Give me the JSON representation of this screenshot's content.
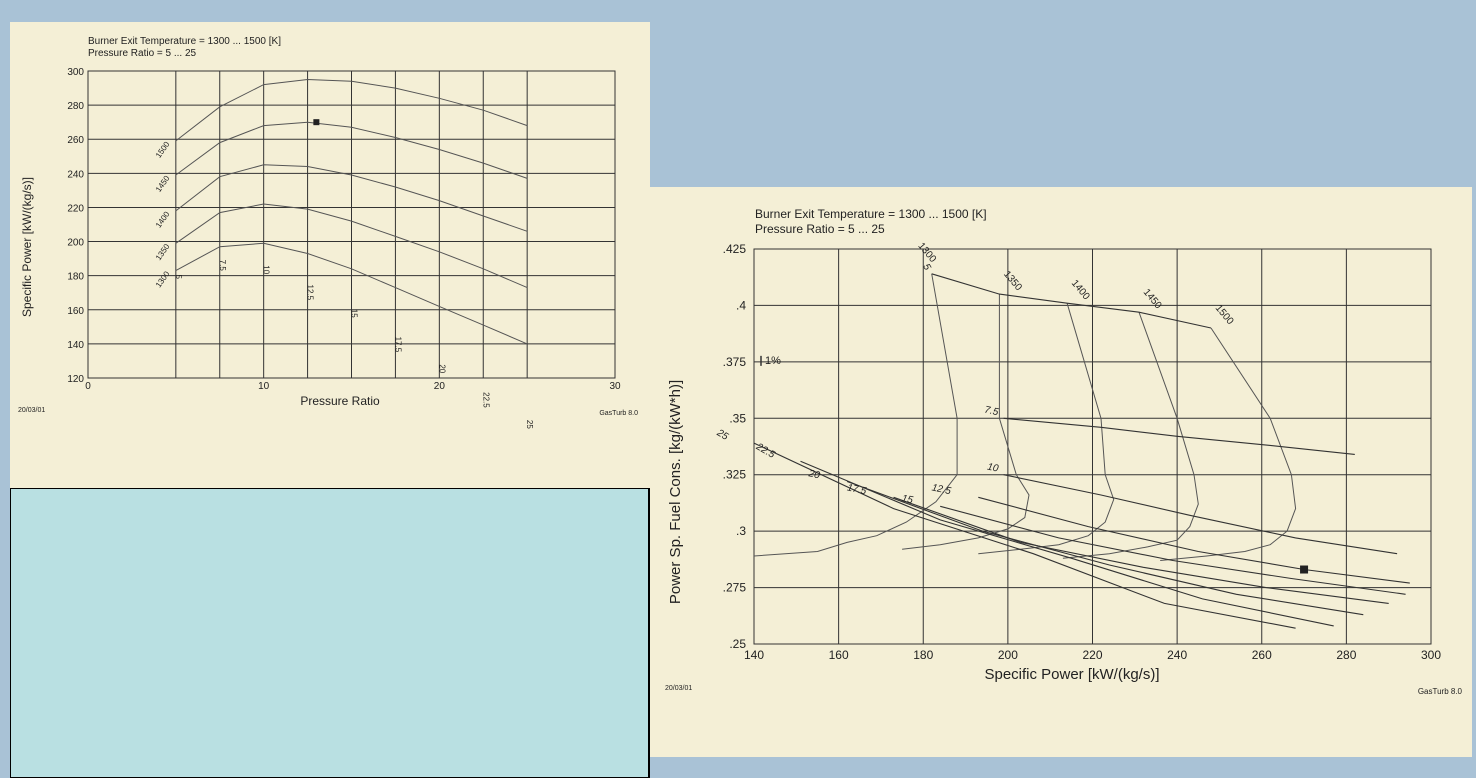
{
  "colors": {
    "page_bg": "#a9c2d6",
    "paper": "#f4efd6",
    "blank_panel": "#b9e0e2",
    "grid": "#333333",
    "curve": "#555555"
  },
  "chart_data": [
    {
      "type": "line",
      "header_lines": [
        "Burner Exit Temperature = 1300 ... 1500 [K]",
        "Pressure Ratio = 5 ... 25"
      ],
      "xlabel": "Pressure Ratio",
      "ylabel": "Specific Power [kW/(kg/s)]",
      "xlim": [
        0,
        30
      ],
      "ylim": [
        120,
        300
      ],
      "xticks": [
        0,
        10,
        20,
        30
      ],
      "yticks": [
        120,
        140,
        160,
        180,
        200,
        220,
        240,
        260,
        280,
        300
      ],
      "grid": true,
      "date": "20/03/01",
      "software": "GasTurb 8.0",
      "x": [
        5,
        7.5,
        10,
        12.5,
        15,
        17.5,
        20,
        22.5,
        25
      ],
      "x_markers": [
        "5",
        "7.5",
        "10",
        "12.5",
        "15",
        "17.5",
        "20",
        "22.5",
        "25"
      ],
      "series": [
        {
          "name": "1300",
          "values": [
            183,
            197,
            199,
            193,
            184,
            173,
            162,
            151,
            140
          ]
        },
        {
          "name": "1350",
          "values": [
            199,
            217,
            222,
            219,
            212,
            203,
            194,
            184,
            173
          ]
        },
        {
          "name": "1400",
          "values": [
            218,
            238,
            245,
            244,
            239,
            232,
            224,
            215,
            206
          ]
        },
        {
          "name": "1450",
          "values": [
            239,
            258,
            268,
            270,
            267,
            261,
            254,
            246,
            237
          ]
        },
        {
          "name": "1500",
          "values": [
            259,
            279,
            292,
            295,
            294,
            290,
            284,
            277,
            268
          ]
        }
      ],
      "highlight_point": {
        "x": 13,
        "y": 270
      }
    },
    {
      "type": "line",
      "header_lines": [
        "Burner Exit Temperature = 1300 ... 1500 [K]",
        "Pressure Ratio = 5 ... 25"
      ],
      "xlabel": "Specific Power [kW/(kg/s)]",
      "ylabel": "Power Sp. Fuel Cons. [kg/(kW*h)]",
      "xlim": [
        140,
        300
      ],
      "ylim": [
        0.25,
        0.425
      ],
      "xticks": [
        140,
        160,
        180,
        200,
        220,
        240,
        260,
        280,
        300
      ],
      "yticks": [
        ".25",
        ".275",
        ".3",
        ".325",
        ".35",
        ".375",
        ".4",
        ".425"
      ],
      "yvals": [
        0.25,
        0.275,
        0.3,
        0.325,
        0.35,
        0.375,
        0.4,
        0.425
      ],
      "scale_note": "1%",
      "grid": true,
      "date": "20/03/01",
      "software": "GasTurb 8.0",
      "temperature_series": [
        {
          "name": "1300",
          "points": [
            [
              182,
              0.414
            ],
            [
              188,
              0.35
            ],
            [
              188,
              0.325
            ],
            [
              183,
              0.313
            ],
            [
              176,
              0.304
            ],
            [
              169,
              0.298
            ],
            [
              162,
              0.295
            ],
            [
              155,
              0.291
            ],
            [
              140,
              0.289
            ]
          ]
        },
        {
          "name": "1350",
          "points": [
            [
              198,
              0.405
            ],
            [
              198,
              0.35
            ],
            [
              202,
              0.325
            ],
            [
              205,
              0.316
            ],
            [
              204,
              0.306
            ],
            [
              200,
              0.301
            ],
            [
              193,
              0.297
            ],
            [
              184,
              0.294
            ],
            [
              175,
              0.292
            ]
          ]
        },
        {
          "name": "1400",
          "points": [
            [
              214,
              0.401
            ],
            [
              222,
              0.35
            ],
            [
              223,
              0.325
            ],
            [
              225,
              0.314
            ],
            [
              223,
              0.304
            ],
            [
              219,
              0.298
            ],
            [
              212,
              0.294
            ],
            [
              203,
              0.292
            ],
            [
              193,
              0.29
            ]
          ]
        },
        {
          "name": "1450",
          "points": [
            [
              231,
              0.397
            ],
            [
              240,
              0.35
            ],
            [
              244,
              0.325
            ],
            [
              245,
              0.312
            ],
            [
              243,
              0.302
            ],
            [
              240,
              0.296
            ],
            [
              233,
              0.293
            ],
            [
              224,
              0.29
            ],
            [
              213,
              0.288
            ]
          ]
        },
        {
          "name": "1500",
          "points": [
            [
              248,
              0.39
            ],
            [
              262,
              0.35
            ],
            [
              267,
              0.325
            ],
            [
              268,
              0.31
            ],
            [
              266,
              0.3
            ],
            [
              262,
              0.294
            ],
            [
              256,
              0.291
            ],
            [
              247,
              0.289
            ],
            [
              236,
              0.287
            ]
          ]
        }
      ],
      "pressure_ratio_series": [
        {
          "name": "5",
          "points": [
            [
              182,
              0.414
            ],
            [
              198,
              0.405
            ],
            [
              214,
              0.401
            ],
            [
              231,
              0.397
            ],
            [
              248,
              0.39
            ]
          ]
        },
        {
          "name": "7.5",
          "points": [
            [
              199,
              0.35
            ],
            [
              222,
              0.346
            ],
            [
              240,
              0.342
            ],
            [
              262,
              0.338
            ],
            [
              282,
              0.334
            ]
          ]
        },
        {
          "name": "10",
          "points": [
            [
              199,
              0.325
            ],
            [
              222,
              0.316
            ],
            [
              243,
              0.307
            ],
            [
              268,
              0.297
            ],
            [
              292,
              0.29
            ]
          ]
        },
        {
          "name": "12.5",
          "points": [
            [
              193,
              0.315
            ],
            [
              219,
              0.302
            ],
            [
              245,
              0.291
            ],
            [
              270,
              0.283
            ],
            [
              295,
              0.277
            ]
          ]
        },
        {
          "name": "15",
          "points": [
            [
              184,
              0.311
            ],
            [
              212,
              0.297
            ],
            [
              239,
              0.287
            ],
            [
              267,
              0.279
            ],
            [
              294,
              0.272
            ]
          ]
        },
        {
          "name": "17.5",
          "points": [
            [
              173,
              0.315
            ],
            [
              203,
              0.295
            ],
            [
              232,
              0.284
            ],
            [
              261,
              0.275
            ],
            [
              290,
              0.268
            ]
          ]
        },
        {
          "name": "20",
          "points": [
            [
              162,
              0.322
            ],
            [
              194,
              0.3
            ],
            [
              224,
              0.285
            ],
            [
              254,
              0.272
            ],
            [
              284,
              0.263
            ]
          ]
        },
        {
          "name": "22.5",
          "points": [
            [
              151,
              0.331
            ],
            [
              184,
              0.305
            ],
            [
              215,
              0.288
            ],
            [
              246,
              0.27
            ],
            [
              277,
              0.258
            ]
          ]
        },
        {
          "name": "25",
          "points": [
            [
              140,
              0.339
            ],
            [
              173,
              0.31
            ],
            [
              206,
              0.29
            ],
            [
              237,
              0.268
            ],
            [
              268,
              0.257
            ]
          ]
        }
      ],
      "highlight_point": {
        "x": 270,
        "y": 0.283
      }
    }
  ]
}
